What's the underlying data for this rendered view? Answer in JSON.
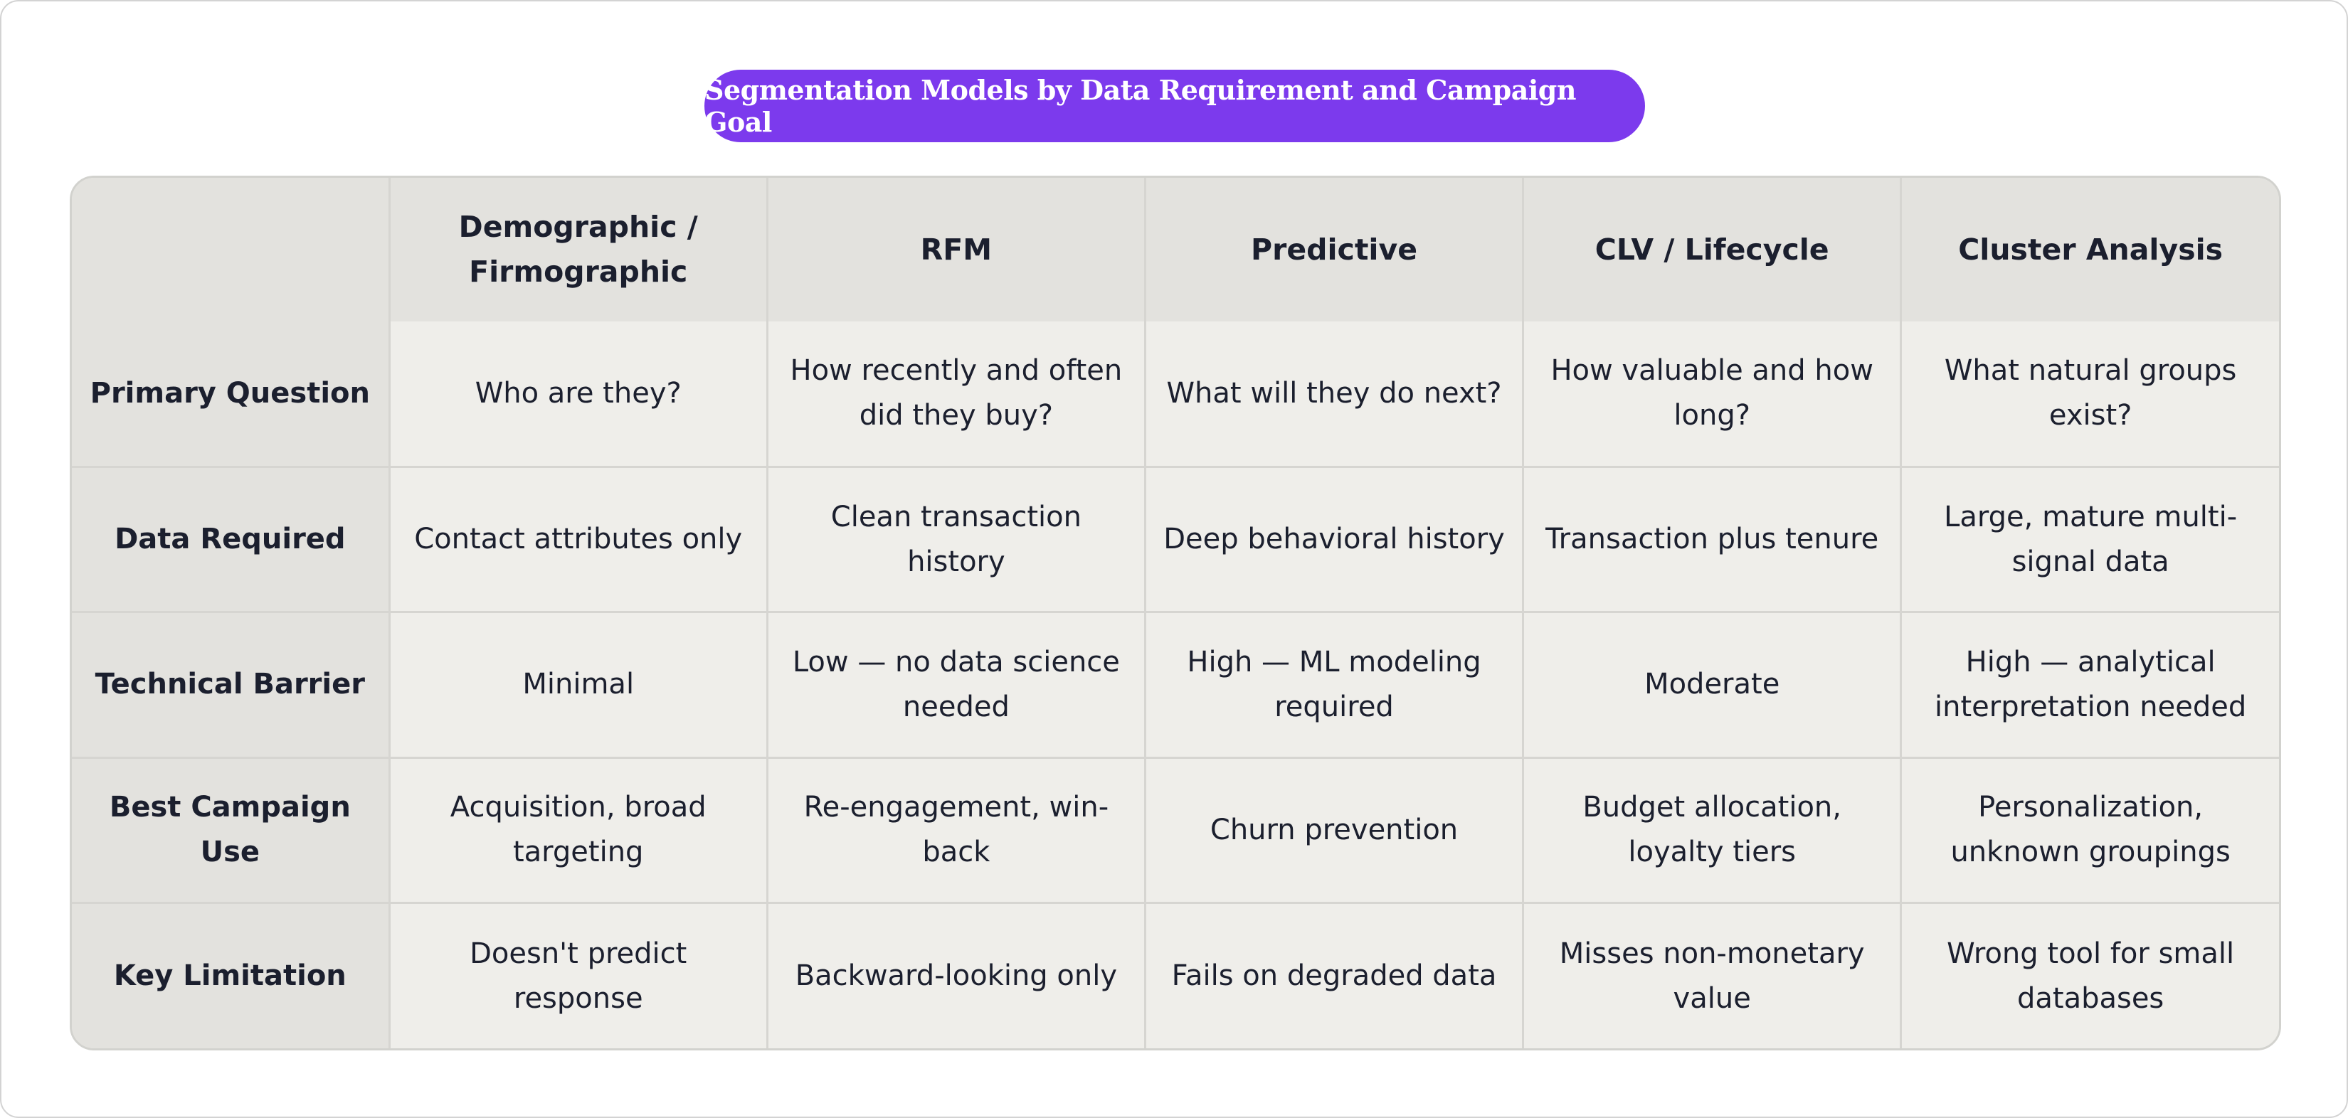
{
  "title": "Segmentation Models by Data Requirement and Campaign Goal",
  "colors": {
    "title_background": "#7c3aed",
    "title_text": "#ffffff",
    "header_background": "#e3e2de",
    "cell_background": "#efeeea",
    "text": "#1b1f2e"
  },
  "table": {
    "corner": "",
    "columns": [
      "Demographic / Firmographic",
      "RFM",
      "Predictive",
      "CLV / Lifecycle",
      "Cluster Analysis"
    ],
    "rows": [
      {
        "label": "Primary Question",
        "cells": [
          "Who are they?",
          "How recently and often did they buy?",
          "What will they do next?",
          "How valuable and how long?",
          "What natural groups exist?"
        ]
      },
      {
        "label": "Data Required",
        "cells": [
          "Contact attributes only",
          "Clean transaction history",
          "Deep behavioral history",
          "Transaction plus tenure",
          "Large, mature multi-signal data"
        ]
      },
      {
        "label": "Technical Barrier",
        "cells": [
          "Minimal",
          "Low — no data science needed",
          "High — ML modeling required",
          "Moderate",
          "High — analytical interpretation needed"
        ]
      },
      {
        "label": "Best Campaign Use",
        "cells": [
          "Acquisition, broad targeting",
          "Re-engagement, win-back",
          "Churn prevention",
          "Budget allocation, loyalty tiers",
          "Personalization, unknown groupings"
        ]
      },
      {
        "label": "Key Limitation",
        "cells": [
          "Doesn't predict response",
          "Backward-looking only",
          "Fails on degraded data",
          "Misses non-monetary value",
          "Wrong tool for small databases"
        ]
      }
    ]
  }
}
